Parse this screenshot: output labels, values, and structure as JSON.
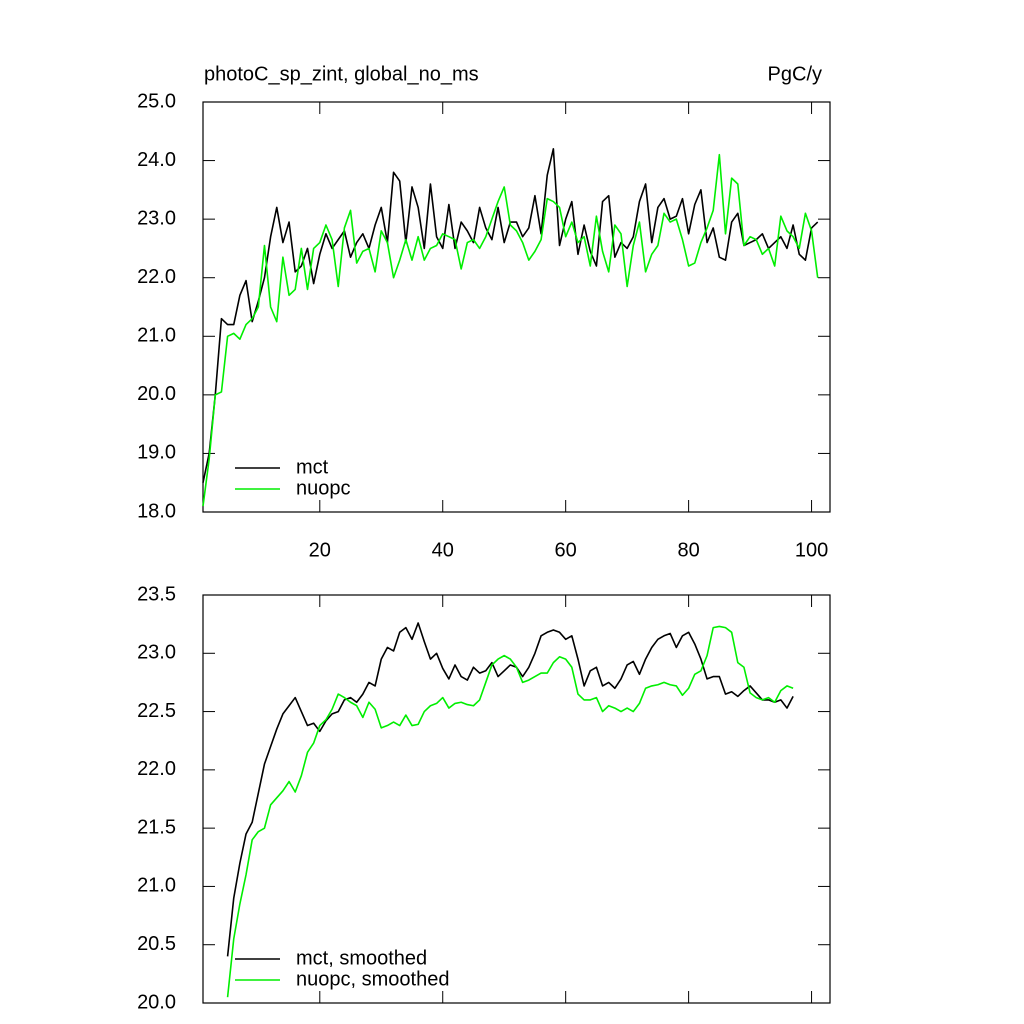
{
  "chart_data": [
    {
      "type": "line",
      "title": "photoC_sp_zint, global_no_ms",
      "title_right": "PgC/y",
      "x": [
        1,
        2,
        3,
        4,
        5,
        6,
        7,
        8,
        9,
        10,
        11,
        12,
        13,
        14,
        15,
        16,
        17,
        18,
        19,
        20,
        21,
        22,
        23,
        24,
        25,
        26,
        27,
        28,
        29,
        30,
        31,
        32,
        33,
        34,
        35,
        36,
        37,
        38,
        39,
        40,
        41,
        42,
        43,
        44,
        45,
        46,
        47,
        48,
        49,
        50,
        51,
        52,
        53,
        54,
        55,
        56,
        57,
        58,
        59,
        60,
        61,
        62,
        63,
        64,
        65,
        66,
        67,
        68,
        69,
        70,
        71,
        72,
        73,
        74,
        75,
        76,
        77,
        78,
        79,
        80,
        81,
        82,
        83,
        84,
        85,
        86,
        87,
        88,
        89,
        90,
        91,
        92,
        93,
        94,
        95,
        96,
        97,
        98,
        99,
        100,
        101
      ],
      "series": [
        {
          "name": "mct",
          "color": "#000000",
          "values": [
            18.5,
            19.0,
            20.0,
            21.3,
            21.2,
            21.2,
            21.7,
            21.95,
            21.25,
            21.6,
            22.0,
            22.7,
            23.2,
            22.6,
            22.95,
            22.1,
            22.2,
            22.5,
            21.9,
            22.4,
            22.75,
            22.5,
            22.65,
            22.8,
            22.35,
            22.6,
            22.75,
            22.5,
            22.9,
            23.2,
            22.6,
            23.8,
            23.65,
            22.6,
            23.55,
            23.2,
            22.5,
            23.6,
            22.7,
            22.5,
            23.25,
            22.5,
            22.95,
            22.8,
            22.6,
            23.2,
            22.85,
            22.65,
            23.2,
            22.6,
            22.95,
            22.95,
            22.7,
            22.85,
            23.4,
            22.75,
            23.75,
            24.2,
            22.55,
            23.0,
            23.3,
            22.4,
            22.9,
            22.45,
            22.2,
            23.3,
            23.4,
            22.35,
            22.6,
            22.5,
            22.7,
            23.3,
            23.6,
            22.6,
            23.2,
            23.35,
            23.0,
            23.05,
            23.35,
            22.75,
            23.25,
            23.5,
            22.6,
            22.85,
            22.35,
            22.3,
            22.95,
            23.1,
            22.55,
            22.6,
            22.65,
            22.75,
            22.5,
            22.6,
            22.7,
            22.5,
            22.9,
            22.4,
            22.3,
            22.85,
            22.95
          ]
        },
        {
          "name": "nuopc",
          "color": "#00ee00",
          "values": [
            18.1,
            18.9,
            20.0,
            20.05,
            21.0,
            21.05,
            20.95,
            21.2,
            21.3,
            21.5,
            22.55,
            21.5,
            21.25,
            22.35,
            21.7,
            21.8,
            22.5,
            21.8,
            22.5,
            22.6,
            22.9,
            22.65,
            21.85,
            22.85,
            23.15,
            22.25,
            22.45,
            22.5,
            22.1,
            22.8,
            22.6,
            22.0,
            22.3,
            22.65,
            22.3,
            22.7,
            22.3,
            22.5,
            22.55,
            22.75,
            22.7,
            22.65,
            22.15,
            22.6,
            22.65,
            22.5,
            22.7,
            23.0,
            23.3,
            23.55,
            22.9,
            22.8,
            22.6,
            22.3,
            22.45,
            22.65,
            23.35,
            23.3,
            23.2,
            22.7,
            22.95,
            22.6,
            22.7,
            22.2,
            23.05,
            22.45,
            22.1,
            22.9,
            22.75,
            21.85,
            22.55,
            22.95,
            22.1,
            22.4,
            22.55,
            23.1,
            22.95,
            23.0,
            22.65,
            22.2,
            22.25,
            22.6,
            22.85,
            23.15,
            24.1,
            22.75,
            23.7,
            23.6,
            22.55,
            22.7,
            22.65,
            22.4,
            22.5,
            22.2,
            23.05,
            22.8,
            22.7,
            22.5,
            23.1,
            22.8,
            22.0
          ]
        }
      ],
      "xlim": [
        1,
        103
      ],
      "xticks": [
        20,
        40,
        60,
        80,
        100
      ],
      "ylim": [
        18,
        25
      ],
      "yticks": [
        {
          "value": 18,
          "label": "18.0"
        },
        {
          "value": 19,
          "label": "19.0"
        },
        {
          "value": 20,
          "label": "20.0"
        },
        {
          "value": 21,
          "label": "21.0"
        },
        {
          "value": 22,
          "label": "22.0"
        },
        {
          "value": 23,
          "label": "23.0"
        },
        {
          "value": 24,
          "label": "24.0"
        },
        {
          "value": 25,
          "label": "25.0"
        }
      ],
      "legend": "bottom-left"
    },
    {
      "type": "line",
      "x": [
        5,
        6,
        7,
        8,
        9,
        10,
        11,
        12,
        13,
        14,
        15,
        16,
        17,
        18,
        19,
        20,
        21,
        22,
        23,
        24,
        25,
        26,
        27,
        28,
        29,
        30,
        31,
        32,
        33,
        34,
        35,
        36,
        37,
        38,
        39,
        40,
        41,
        42,
        43,
        44,
        45,
        46,
        47,
        48,
        49,
        50,
        51,
        52,
        53,
        54,
        55,
        56,
        57,
        58,
        59,
        60,
        61,
        62,
        63,
        64,
        65,
        66,
        67,
        68,
        69,
        70,
        71,
        72,
        73,
        74,
        75,
        76,
        77,
        78,
        79,
        80,
        81,
        82,
        83,
        84,
        85,
        86,
        87,
        88,
        89,
        90,
        91,
        92,
        93,
        94,
        95,
        96,
        97
      ],
      "series": [
        {
          "name": "mct, smoothed",
          "color": "#000000",
          "values": [
            20.4,
            20.9,
            21.2,
            21.45,
            21.55,
            21.8,
            22.05,
            22.2,
            22.35,
            22.48,
            22.55,
            22.62,
            22.5,
            22.38,
            22.4,
            22.33,
            22.42,
            22.48,
            22.5,
            22.6,
            22.62,
            22.58,
            22.65,
            22.75,
            22.72,
            22.95,
            23.05,
            23.02,
            23.18,
            23.22,
            23.12,
            23.26,
            23.1,
            22.95,
            23.0,
            22.87,
            22.78,
            22.9,
            22.8,
            22.77,
            22.88,
            22.83,
            22.85,
            22.92,
            22.8,
            22.85,
            22.9,
            22.88,
            22.8,
            22.88,
            23.0,
            23.15,
            23.18,
            23.2,
            23.18,
            23.12,
            23.15,
            22.95,
            22.72,
            22.85,
            22.88,
            22.72,
            22.75,
            22.7,
            22.78,
            22.9,
            22.93,
            22.82,
            22.95,
            23.05,
            23.12,
            23.15,
            23.17,
            23.05,
            23.15,
            23.18,
            23.08,
            22.95,
            22.78,
            22.8,
            22.8,
            22.65,
            22.67,
            22.63,
            22.68,
            22.72,
            22.66,
            22.6,
            22.6,
            22.58,
            22.6,
            22.53,
            22.63
          ]
        },
        {
          "name": "nuopc, smoothed",
          "color": "#00ee00",
          "values": [
            20.05,
            20.55,
            20.85,
            21.1,
            21.4,
            21.47,
            21.5,
            21.7,
            21.76,
            21.82,
            21.9,
            21.81,
            21.95,
            22.15,
            22.23,
            22.38,
            22.43,
            22.52,
            22.65,
            22.62,
            22.58,
            22.55,
            22.45,
            22.58,
            22.52,
            22.36,
            22.38,
            22.41,
            22.38,
            22.47,
            22.38,
            22.39,
            22.5,
            22.55,
            22.57,
            22.62,
            22.53,
            22.57,
            22.58,
            22.56,
            22.55,
            22.6,
            22.75,
            22.9,
            22.95,
            22.98,
            22.95,
            22.88,
            22.75,
            22.77,
            22.8,
            22.83,
            22.83,
            22.92,
            22.97,
            22.95,
            22.88,
            22.65,
            22.6,
            22.6,
            22.62,
            22.5,
            22.55,
            22.53,
            22.5,
            22.53,
            22.5,
            22.57,
            22.7,
            22.72,
            22.73,
            22.75,
            22.73,
            22.72,
            22.64,
            22.7,
            22.82,
            22.85,
            22.98,
            23.22,
            23.23,
            23.22,
            23.18,
            22.92,
            22.88,
            22.66,
            22.62,
            22.6,
            22.62,
            22.58,
            22.68,
            22.72,
            22.7
          ]
        }
      ],
      "xlim": [
        1,
        103
      ],
      "xticks": [
        20,
        40,
        60,
        80,
        100
      ],
      "ylim": [
        20,
        23.5
      ],
      "yticks": [
        {
          "value": 20,
          "label": "20.0"
        },
        20.5,
        {
          "value": 21,
          "label": "21.0"
        },
        21.5,
        {
          "value": 22,
          "label": "22.0"
        },
        22.5,
        {
          "value": 23,
          "label": "23.0"
        },
        23.5
      ],
      "legend": "bottom-left"
    }
  ]
}
